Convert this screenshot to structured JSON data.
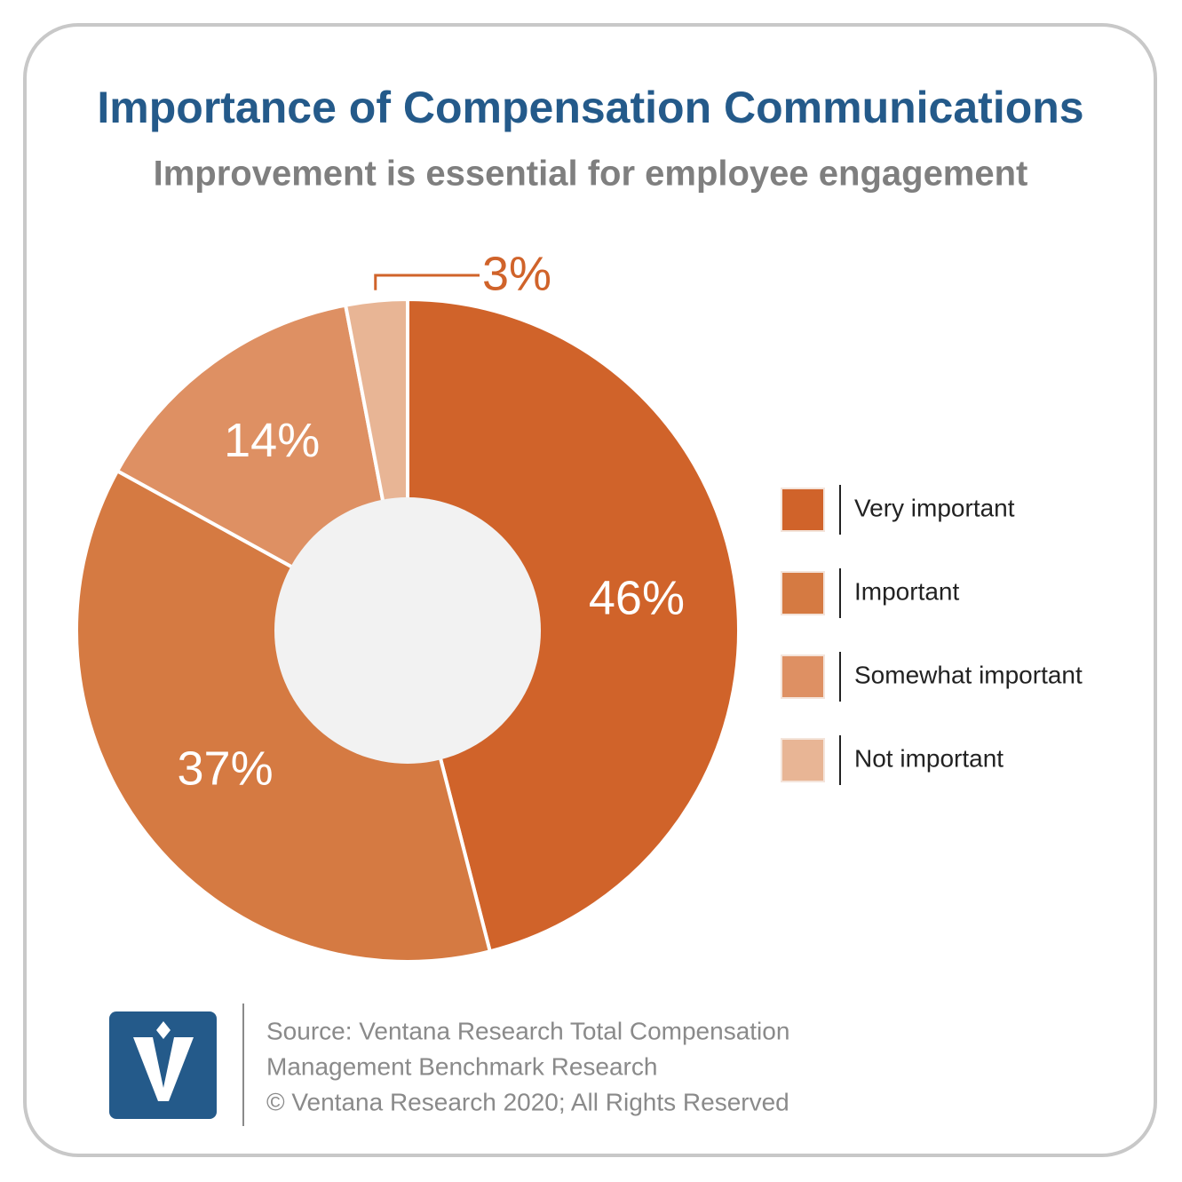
{
  "chart_data": {
    "type": "pie",
    "title": "Importance of Compensation Communications",
    "subtitle": "Improvement is essential for employee engagement",
    "categories": [
      "Very important",
      "Important",
      "Somewhat important",
      "Not important"
    ],
    "values": [
      46,
      37,
      14,
      3
    ],
    "value_labels": [
      "46%",
      "37%",
      "14%",
      "3%"
    ],
    "colors": [
      "#d0632a",
      "#d57a42",
      "#de9063",
      "#e8b595"
    ],
    "donut": true,
    "legend": "right",
    "source": [
      "Source: Ventana Research Total Compensation",
      "Management Benchmark Research",
      "© Ventana Research 2020; All Rights Reserved"
    ]
  }
}
